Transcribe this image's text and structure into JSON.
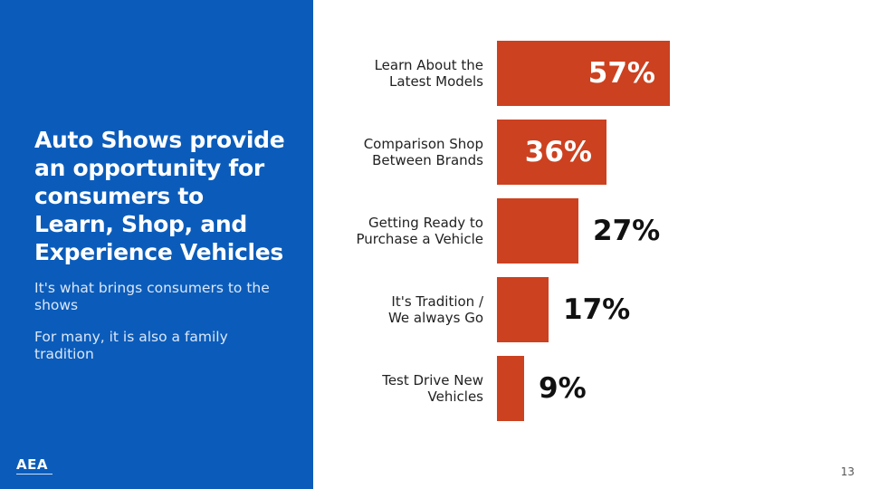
{
  "slide": {
    "headline_lines": [
      "Auto Shows provide",
      "an opportunity for",
      "consumers to",
      "Learn, Shop, and",
      "Experience Vehicles"
    ],
    "subtext_1": "It's what brings consumers to the shows",
    "subtext_2": "For many, it is also a family tradition",
    "logo_text": "AEA",
    "page_number": "13",
    "colors": {
      "panel": "#0b5cba",
      "bar": "#cc4120"
    }
  },
  "chart_data": {
    "type": "bar",
    "orientation": "horizontal",
    "categories": [
      [
        "Learn About the",
        "Latest Models"
      ],
      [
        "Comparison Shop",
        "Between Brands"
      ],
      [
        "Getting Ready to",
        "Purchase a Vehicle"
      ],
      [
        "It's Tradition /",
        "We always Go"
      ],
      [
        "Test Drive New",
        "Vehicles"
      ]
    ],
    "values": [
      57,
      36,
      27,
      17,
      9
    ],
    "value_labels": [
      "57%",
      "36%",
      "27%",
      "17%",
      "9%"
    ],
    "xlim": [
      0,
      57
    ],
    "grid": false,
    "legend": "none"
  }
}
